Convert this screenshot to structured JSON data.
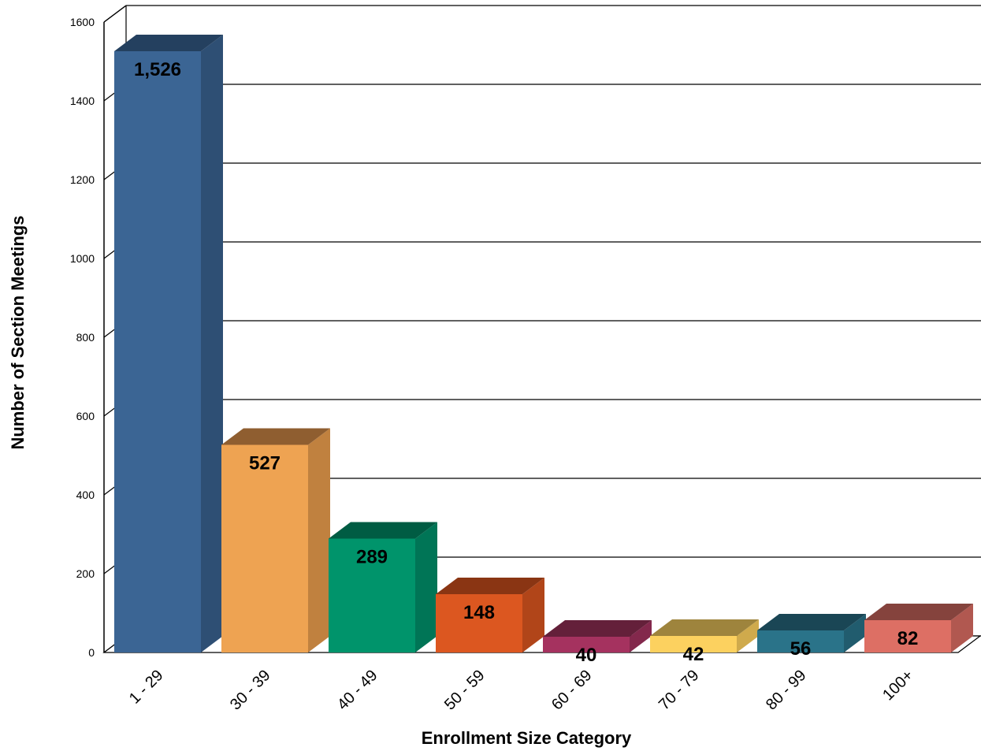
{
  "chart_data": {
    "type": "bar",
    "title": "",
    "xlabel": "Enrollment Size Category",
    "ylabel": "Number of Section Meetings",
    "categories": [
      "1 - 29",
      "30 - 39",
      "40 - 49",
      "50 - 59",
      "60 - 69",
      "70 - 79",
      "80 - 99",
      "100+"
    ],
    "values": [
      1526,
      527,
      289,
      148,
      40,
      42,
      56,
      82
    ],
    "value_labels": [
      "1,526",
      "527",
      "289",
      "148",
      "40",
      "42",
      "56",
      "82"
    ],
    "yticks": [
      "0",
      "200",
      "400",
      "600",
      "800",
      "1000",
      "1200",
      "1400",
      "1600"
    ],
    "ylim": [
      0,
      1600
    ],
    "grid": true,
    "style": "3d-bar",
    "colors": [
      {
        "front": "#3b6594",
        "side": "#2e4f74",
        "top": "#24405f"
      },
      {
        "front": "#eea352",
        "side": "#c0813f",
        "top": "#8f5e30"
      },
      {
        "front": "#00946b",
        "side": "#007556",
        "top": "#005c43"
      },
      {
        "front": "#dc5720",
        "side": "#b14519",
        "top": "#8a3513"
      },
      {
        "front": "#a5325f",
        "side": "#83284c",
        "top": "#64203a"
      },
      {
        "front": "#fcd15f",
        "side": "#cfaa4c",
        "top": "#9e843d"
      },
      {
        "front": "#2a7389",
        "side": "#215c6e",
        "top": "#1a4655"
      },
      {
        "front": "#dd6f64",
        "side": "#b15850",
        "top": "#85433d"
      }
    ]
  }
}
